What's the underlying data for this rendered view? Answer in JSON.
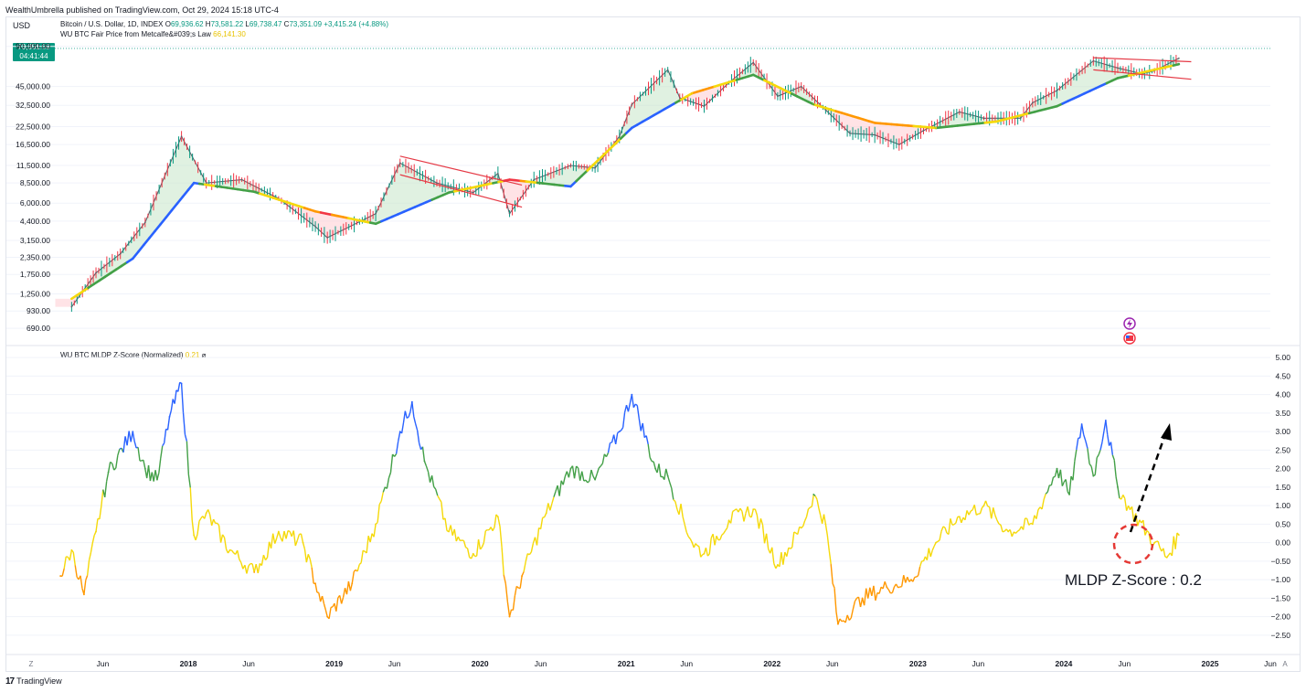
{
  "header": {
    "published": "WealthUmbrella published on TradingView.com, Oct 29, 2024 15:18 UTC-4"
  },
  "top_pane": {
    "currency": "USD",
    "symbol": "Bitcoin / U.S. Dollar, 1D, INDEX",
    "ohlc": {
      "o_label": "O",
      "o": "69,936.62",
      "h_label": "H",
      "h": "73,581.22",
      "l_label": "L",
      "l": "69,738.47",
      "c_label": "C",
      "c": "73,351.09",
      "change": "+3,415.24 (+4.88%)"
    },
    "indicator_name": "WU BTC Fair Price from Metcalfe&#039;s Law",
    "indicator_value": "66,141.30",
    "price_badge": {
      "price": "73,351.09",
      "countdown": "04:41:44"
    }
  },
  "bottom_pane": {
    "indicator_name": "WU BTC MLDP Z-Score (Normalized)",
    "indicator_value": "0.21",
    "indicator_suffix": "⌀",
    "annotation": "MLDP Z-Score : 0.2"
  },
  "time_axis": {
    "left_button": "Z",
    "right_button": "A",
    "labels": [
      "Jun",
      "2018",
      "Jun",
      "2019",
      "Jun",
      "2020",
      "Jun",
      "2021",
      "Jun",
      "2022",
      "Jun",
      "2023",
      "Jun",
      "2024",
      "Jun",
      "2025",
      "Jun"
    ]
  },
  "footer": {
    "logo_glyph": "17",
    "brand": "TradingView"
  },
  "colors": {
    "up": "#089981",
    "down": "#f23645",
    "fair_blue": "#2962ff",
    "fair_green": "#43a047",
    "fair_yellow": "#f5d90a",
    "fair_orange": "#ff9800",
    "fair_red": "#f23645",
    "channel": "#e53945"
  },
  "chart_data": [
    {
      "type": "line",
      "title": "Bitcoin / U.S. Dollar, 1D, INDEX",
      "scale": "log",
      "x_range": [
        "2017-02",
        "2025-06"
      ],
      "y_ticks": [
        "90,000.00",
        "45,000.00",
        "32,500.00",
        "22,500.00",
        "16,500.00",
        "11,500.00",
        "8,500.00",
        "6,000.00",
        "4,400.00",
        "3,150.00",
        "2,350.00",
        "1,750.00",
        "1,250.00",
        "930.00",
        "690.00"
      ],
      "y_tick_values": [
        90000,
        45000,
        32500,
        22500,
        16500,
        11500,
        8500,
        6000,
        4400,
        3150,
        2350,
        1750,
        1250,
        930,
        690
      ],
      "ylim": [
        600,
        110000
      ],
      "grid": true,
      "series": [
        {
          "name": "Bitcoin / U.S. Dollar",
          "x": [
            "2017-03",
            "2017-05",
            "2017-07",
            "2017-09",
            "2017-12",
            "2018-02",
            "2018-05",
            "2018-08",
            "2018-11",
            "2018-12",
            "2019-04",
            "2019-06",
            "2019-09",
            "2019-12",
            "2020-02",
            "2020-03",
            "2020-05",
            "2020-08",
            "2020-10",
            "2020-12",
            "2021-01",
            "2021-04",
            "2021-05",
            "2021-07",
            "2021-09",
            "2021-11",
            "2022-01",
            "2022-03",
            "2022-05",
            "2022-07",
            "2022-09",
            "2022-11",
            "2023-01",
            "2023-04",
            "2023-06",
            "2023-09",
            "2023-10",
            "2023-12",
            "2024-03",
            "2024-05",
            "2024-07",
            "2024-08",
            "2024-10"
          ],
          "y": [
            1000,
            1800,
            2500,
            4300,
            19000,
            8500,
            9000,
            6500,
            4000,
            3300,
            5000,
            12000,
            8500,
            7200,
            10000,
            5000,
            9000,
            11500,
            11000,
            19000,
            33000,
            60000,
            37000,
            32000,
            48000,
            68000,
            38000,
            45000,
            30000,
            20000,
            19500,
            16500,
            21000,
            29000,
            26000,
            26000,
            34000,
            42000,
            70000,
            62000,
            56000,
            59000,
            73351
          ]
        },
        {
          "name": "WU BTC Fair Price from Metcalfe's Law",
          "x": [
            "2017-03",
            "2017-08",
            "2018-01",
            "2018-06",
            "2018-11",
            "2019-04",
            "2019-10",
            "2020-03",
            "2020-08",
            "2021-01",
            "2021-06",
            "2021-11",
            "2022-04",
            "2022-09",
            "2023-02",
            "2023-07",
            "2023-12",
            "2024-05",
            "2024-10"
          ],
          "y": [
            1150,
            2300,
            8500,
            7300,
            5200,
            4200,
            7200,
            9000,
            8000,
            22000,
            40000,
            55000,
            33000,
            24000,
            22000,
            24500,
            32000,
            52000,
            66141.3
          ]
        }
      ],
      "annotations": [
        "descending channel Jun 2019 - Apr 2020",
        "descending channel Mar 2024 - Oct 2024"
      ]
    },
    {
      "type": "line",
      "title": "WU BTC MLDP Z-Score (Normalized)",
      "x_range": [
        "2017-02",
        "2025-06"
      ],
      "y_ticks": [
        "5.00",
        "4.50",
        "4.00",
        "3.50",
        "3.00",
        "2.50",
        "2.00",
        "1.50",
        "1.00",
        "0.50",
        "0.00",
        "−0.50",
        "−1.00",
        "−1.50",
        "−2.00",
        "−2.50"
      ],
      "y_tick_values": [
        5,
        4.5,
        4,
        3.5,
        3,
        2.5,
        2,
        1.5,
        1,
        0.5,
        0,
        -0.5,
        -1,
        -1.5,
        -2,
        -2.5
      ],
      "ylim": [
        -2.75,
        5.2
      ],
      "grid": true,
      "series": [
        {
          "name": "WU BTC MLDP Z-Score (Normalized)",
          "x": [
            "2017-02",
            "2017-03",
            "2017-04",
            "2017-05",
            "2017-06",
            "2017-08",
            "2017-09",
            "2017-10",
            "2017-11",
            "2017-12",
            "2018-01",
            "2018-02",
            "2018-04",
            "2018-06",
            "2018-08",
            "2018-10",
            "2018-11",
            "2018-12",
            "2019-02",
            "2019-04",
            "2019-06",
            "2019-07",
            "2019-08",
            "2019-10",
            "2019-12",
            "2020-02",
            "2020-03",
            "2020-04",
            "2020-06",
            "2020-08",
            "2020-10",
            "2020-12",
            "2021-01",
            "2021-03",
            "2021-04",
            "2021-06",
            "2021-07",
            "2021-09",
            "2021-11",
            "2022-01",
            "2022-03",
            "2022-04",
            "2022-05",
            "2022-06",
            "2022-08",
            "2022-10",
            "2022-12",
            "2023-02",
            "2023-04",
            "2023-06",
            "2023-08",
            "2023-10",
            "2023-12",
            "2024-01",
            "2024-02",
            "2024-03",
            "2024-04",
            "2024-05",
            "2024-06",
            "2024-08",
            "2024-09",
            "2024-10"
          ],
          "y": [
            -0.9,
            -0.2,
            -1.4,
            0.3,
            1.9,
            3.0,
            2.0,
            1.7,
            3.4,
            4.3,
            0.2,
            0.8,
            -0.2,
            -0.8,
            0.3,
            0.0,
            -1.1,
            -2.0,
            -1.1,
            0.5,
            3.0,
            3.8,
            2.2,
            0.3,
            -0.3,
            0.7,
            -2.0,
            -0.9,
            0.8,
            2.0,
            1.7,
            3.0,
            4.0,
            2.0,
            1.8,
            0.0,
            -0.3,
            0.6,
            0.9,
            -0.6,
            0.4,
            1.3,
            0.5,
            -2.2,
            -1.5,
            -1.2,
            -1.0,
            0.0,
            0.7,
            1.0,
            0.3,
            0.5,
            2.0,
            1.3,
            3.2,
            1.8,
            3.3,
            1.5,
            0.9,
            0.0,
            -0.4,
            0.21
          ]
        }
      ],
      "color_bands": [
        {
          "above": 2.5,
          "color": "blue"
        },
        {
          "above": 1.25,
          "color": "green"
        },
        {
          "above": -0.75,
          "color": "yellow"
        },
        {
          "above": -5,
          "color": "orange"
        }
      ]
    }
  ]
}
